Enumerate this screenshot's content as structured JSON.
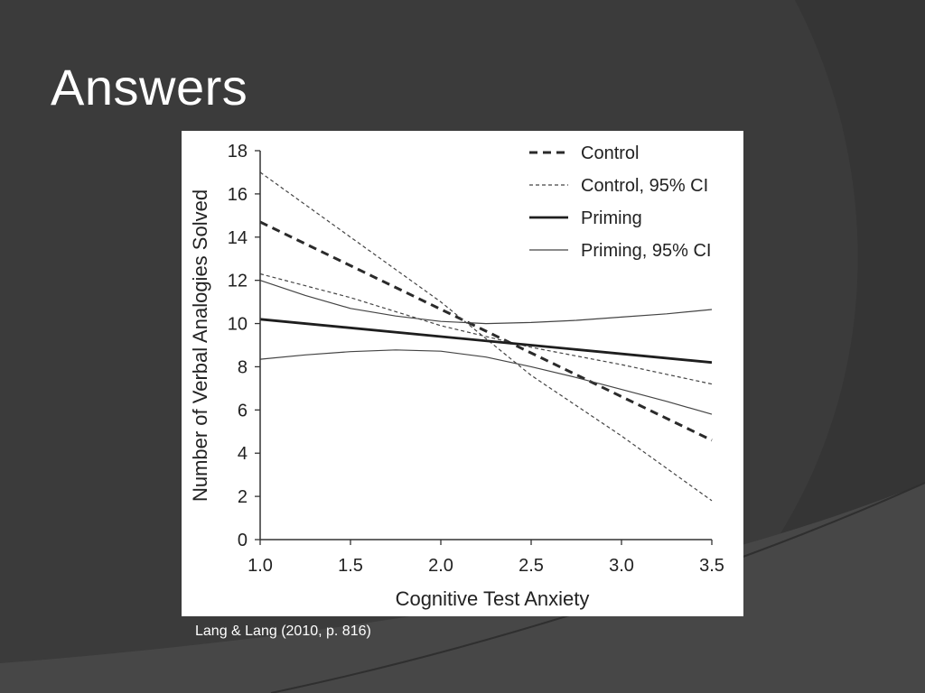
{
  "slide": {
    "title": "Answers",
    "citation": "Lang & Lang (2010, p. 816)",
    "colors": {
      "background": "#3b3b3b",
      "title": "#ffffff",
      "figure_bg": "#ffffff"
    }
  },
  "chart_data": {
    "type": "line",
    "title": "",
    "xlabel": "Cognitive Test Anxiety",
    "ylabel": "Number of Verbal Analogies Solved",
    "xlim": [
      1.0,
      3.5
    ],
    "ylim": [
      0,
      18
    ],
    "xticks": [
      "1.0",
      "1.5",
      "2.0",
      "2.5",
      "3.0",
      "3.5"
    ],
    "yticks": [
      "0",
      "2",
      "4",
      "6",
      "8",
      "10",
      "12",
      "14",
      "16",
      "18"
    ],
    "grid": false,
    "legend_position": "top-right",
    "series": [
      {
        "name": "Control",
        "style": "dashed-thick",
        "x": [
          1.0,
          3.5
        ],
        "y": [
          14.7,
          4.6
        ]
      },
      {
        "name": "Control, 95% CI",
        "style": "dashed-thin",
        "x": [
          1.0,
          1.5,
          2.0,
          2.5,
          3.0,
          3.5
        ],
        "y": [
          17.0,
          14.0,
          11.0,
          7.6,
          4.8,
          1.8
        ]
      },
      {
        "name": "Control, 95% CI",
        "style": "dashed-thin",
        "legend": false,
        "x": [
          1.0,
          1.5,
          2.0,
          2.5,
          3.0,
          3.5
        ],
        "y": [
          12.3,
          11.2,
          9.9,
          8.9,
          8.1,
          7.2
        ]
      },
      {
        "name": "Priming",
        "style": "solid-thick",
        "x": [
          1.0,
          3.5
        ],
        "y": [
          10.2,
          8.2
        ]
      },
      {
        "name": "Priming, 95% CI",
        "style": "solid-thin",
        "x": [
          1.0,
          1.25,
          1.5,
          1.75,
          2.0,
          2.25,
          2.5,
          2.75,
          3.0,
          3.25,
          3.5
        ],
        "y": [
          12.0,
          11.3,
          10.7,
          10.35,
          10.1,
          10.0,
          10.05,
          10.15,
          10.3,
          10.45,
          10.65
        ]
      },
      {
        "name": "Priming, 95% CI",
        "style": "solid-thin",
        "legend": false,
        "x": [
          1.0,
          1.25,
          1.5,
          1.75,
          2.0,
          2.25,
          2.5,
          2.75,
          3.0,
          3.25,
          3.5
        ],
        "y": [
          8.35,
          8.55,
          8.7,
          8.78,
          8.72,
          8.45,
          8.0,
          7.5,
          6.95,
          6.4,
          5.8
        ]
      }
    ],
    "legend": [
      {
        "label": "Control",
        "style": "dashed-thick"
      },
      {
        "label": "Control, 95% CI",
        "style": "dashed-thin"
      },
      {
        "label": "Priming",
        "style": "solid-thick"
      },
      {
        "label": "Priming, 95% CI",
        "style": "solid-thin"
      }
    ]
  }
}
